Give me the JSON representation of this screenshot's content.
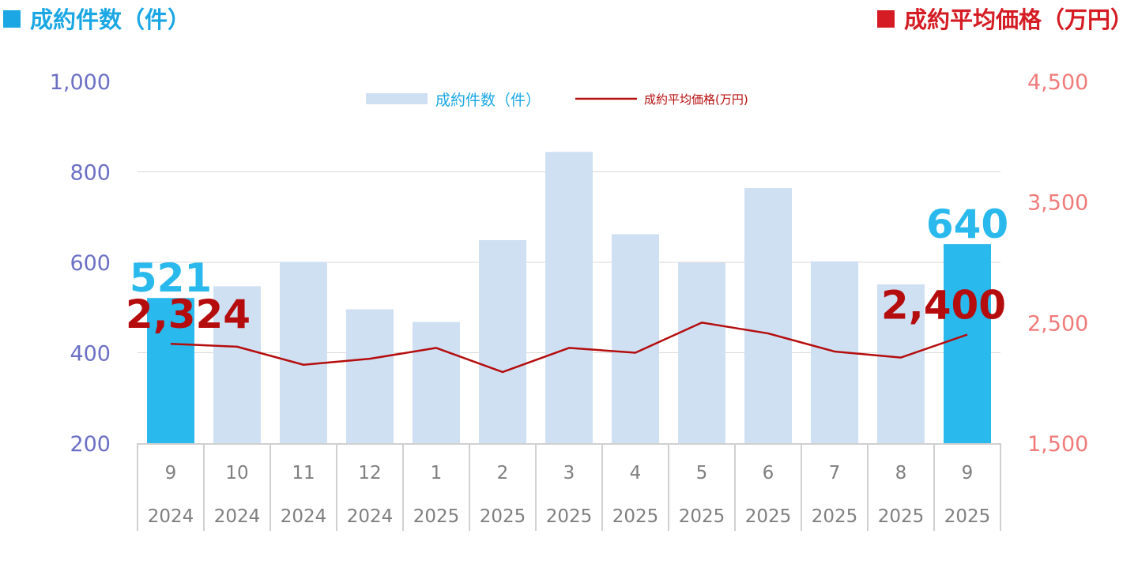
{
  "header": {
    "left_title": "成約件数（件）",
    "right_title": "成約平均価格（万円）"
  },
  "colors": {
    "count_title": "#1aa7e4",
    "price_title": "#d51c24",
    "bar_normal": "#cfe0f3",
    "bar_highlight": "#29b9ec",
    "line": "#b50d0d",
    "left_axis": "#6b70c4",
    "right_axis": "#f07b7b",
    "grid": "#d9d9d9",
    "category_text": "#7f7f7f"
  },
  "chart_data": {
    "type": "bar",
    "categories": [
      {
        "month": "9",
        "year": "2024"
      },
      {
        "month": "10",
        "year": "2024"
      },
      {
        "month": "11",
        "year": "2024"
      },
      {
        "month": "12",
        "year": "2024"
      },
      {
        "month": "1",
        "year": "2025"
      },
      {
        "month": "2",
        "year": "2025"
      },
      {
        "month": "3",
        "year": "2025"
      },
      {
        "month": "4",
        "year": "2025"
      },
      {
        "month": "5",
        "year": "2025"
      },
      {
        "month": "6",
        "year": "2025"
      },
      {
        "month": "7",
        "year": "2025"
      },
      {
        "month": "8",
        "year": "2025"
      },
      {
        "month": "9",
        "year": "2025"
      }
    ],
    "series": [
      {
        "name": "成約件数（件）",
        "type": "bar",
        "axis": "left",
        "values": [
          521,
          547,
          601,
          496,
          468,
          649,
          844,
          662,
          599,
          764,
          602,
          551,
          640
        ],
        "highlight": [
          0,
          12
        ]
      },
      {
        "name": "成約平均価格(万円)",
        "type": "line",
        "axis": "right",
        "values": [
          2324,
          2300,
          2150,
          2200,
          2290,
          2090,
          2290,
          2250,
          2500,
          2410,
          2260,
          2210,
          2400
        ]
      }
    ],
    "left_axis": {
      "ylim": [
        200,
        1000
      ],
      "ticks": [
        "200",
        "400",
        "600",
        "800",
        "1,000"
      ]
    },
    "right_axis": {
      "ylim": [
        1500,
        4500
      ],
      "ticks": [
        "1,500",
        "2,500",
        "3,500",
        "4,500"
      ]
    },
    "data_labels": [
      {
        "series": 0,
        "index": 0,
        "text": "521"
      },
      {
        "series": 0,
        "index": 12,
        "text": "640"
      },
      {
        "series": 1,
        "index": 0,
        "text": "2,324"
      },
      {
        "series": 1,
        "index": 12,
        "text": "2,400"
      }
    ],
    "legend": {
      "position": "top-center",
      "bar_label": "成約件数（件）",
      "line_label": "成約平均価格(万円)"
    },
    "grid": true
  }
}
